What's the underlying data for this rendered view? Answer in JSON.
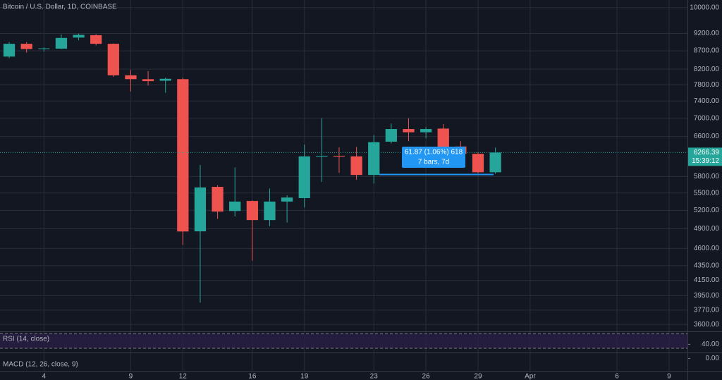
{
  "chart_data": {
    "type": "candlestick",
    "title": "Bitcoin / U.S. Dollar, 1D, COINBASE",
    "x": [
      2,
      3,
      4,
      5,
      6,
      7,
      8,
      9,
      10,
      11,
      12,
      13,
      14,
      15,
      16,
      17,
      18,
      19,
      20,
      21,
      22,
      23,
      24,
      25,
      26,
      27,
      28,
      29,
      30
    ],
    "open": [
      8540,
      8900,
      8760,
      8760,
      9080,
      9150,
      8900,
      8040,
      7940,
      7900,
      7940,
      4860,
      5610,
      5190,
      5360,
      5040,
      5350,
      5410,
      6185,
      6200,
      6190,
      5830,
      6490,
      6760,
      6690,
      6770,
      6390,
      6240,
      5880
    ],
    "high": [
      8950,
      8950,
      8800,
      9170,
      9200,
      9180,
      8910,
      8180,
      8150,
      7980,
      7980,
      6020,
      5640,
      5975,
      5370,
      5580,
      5460,
      6430,
      7000,
      6370,
      6380,
      6630,
      6880,
      7000,
      6800,
      6870,
      6500,
      6270,
      6370
    ],
    "low": [
      8500,
      8650,
      8680,
      8750,
      9000,
      8850,
      8000,
      7630,
      7780,
      7600,
      4652,
      3862,
      5060,
      5100,
      4420,
      4940,
      5000,
      5250,
      5700,
      5870,
      5740,
      5670,
      6450,
      6500,
      6560,
      6250,
      6070,
      5860,
      5850
    ],
    "close": [
      8900,
      8750,
      8770,
      9070,
      9160,
      8900,
      8040,
      7940,
      7890,
      7950,
      4858,
      5600,
      5180,
      5350,
      5040,
      5350,
      5420,
      6190,
      6200,
      6185,
      5830,
      6480,
      6760,
      6690,
      6760,
      6380,
      6240,
      5880,
      6266.39
    ],
    "up_color": "#26a69a",
    "down_color": "#ef5350",
    "log_scale": true,
    "grid": true,
    "xlim": [
      1.47,
      41.06
    ],
    "ylim": [
      10250,
      3520
    ],
    "xticks": [
      4,
      9,
      12,
      16,
      19,
      23,
      26,
      29,
      {
        "value": 32,
        "label": "Apr"
      },
      {
        "value": 37,
        "label": "6"
      },
      {
        "value": 40,
        "label": "9"
      }
    ],
    "yticks": [
      {
        "value": 10000,
        "label": "10000.00"
      },
      {
        "value": 9200,
        "label": "9200.00"
      },
      {
        "value": 8700,
        "label": "8700.00"
      },
      {
        "value": 8200,
        "label": "8200.00"
      },
      {
        "value": 7800,
        "label": "7800.00"
      },
      {
        "value": 7400,
        "label": "7400.00"
      },
      {
        "value": 7000,
        "label": "7000.00"
      },
      {
        "value": 6600,
        "label": "6600.00"
      },
      {
        "value": 5800,
        "label": "5800.00"
      },
      {
        "value": 5500,
        "label": "5500.00"
      },
      {
        "value": 5200,
        "label": "5200.00"
      },
      {
        "value": 4900,
        "label": "4900.00"
      },
      {
        "value": 4600,
        "label": "4600.00"
      },
      {
        "value": 4350,
        "label": "4350.00"
      },
      {
        "value": 4150,
        "label": "4150.00"
      },
      {
        "value": 3950,
        "label": "3950.00"
      },
      {
        "value": 3770,
        "label": "3770.00"
      },
      {
        "value": 3600,
        "label": "3600.00"
      }
    ],
    "countdown": "15:39:12",
    "measure": {
      "line1": "61.87 (1.06%) 618",
      "line2": "7 bars, 7d"
    },
    "rsi": {
      "label": "RSI (14, close)",
      "ylim": [
        100,
        0
      ],
      "yticks": [
        {
          "value": 40,
          "label": "40.00"
        }
      ]
    },
    "macd": {
      "label": "MACD (12, 26, close, 9)",
      "ylim": [
        300,
        -700
      ],
      "yticks": [
        {
          "value": 0,
          "label": "0.00"
        }
      ]
    }
  }
}
